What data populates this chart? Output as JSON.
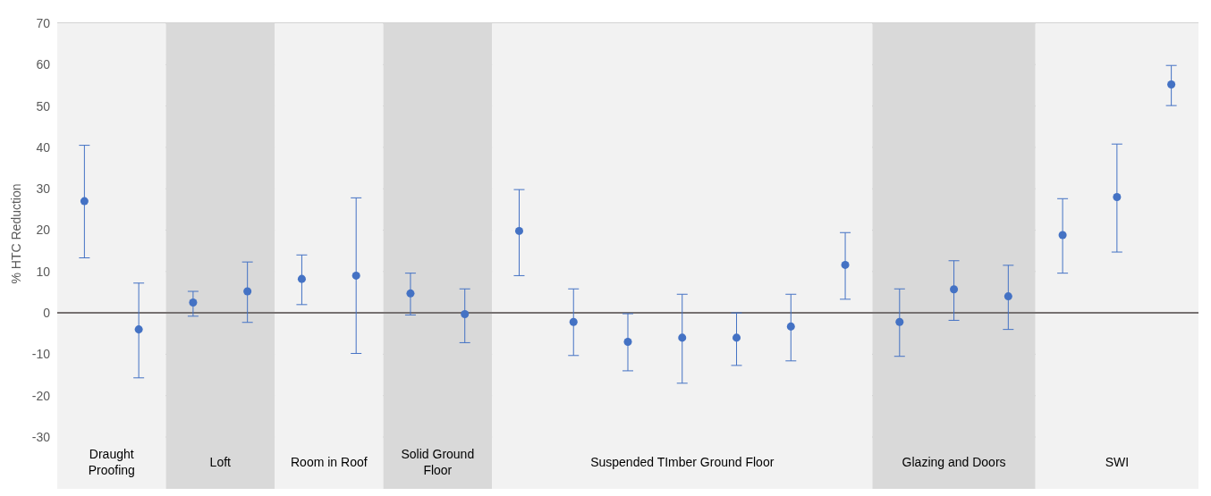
{
  "chart_data": {
    "type": "scatter",
    "ylabel": "% HTC Reduction",
    "categories": [
      null,
      null,
      null,
      null,
      null,
      null,
      null,
      null,
      null,
      null,
      null,
      null,
      null,
      null,
      null,
      null,
      null,
      null,
      null,
      null,
      null
    ],
    "ylim": [
      -30,
      70
    ],
    "yticks": [
      -30,
      -20,
      -10,
      0,
      10,
      20,
      30,
      40,
      50,
      60,
      70
    ],
    "tick_labels": "y",
    "grid": "y",
    "marker": "circle",
    "series": [
      {
        "color": "#4472c4",
        "values": [
          27,
          -4,
          2.5,
          5.2,
          8.2,
          9,
          4.7,
          -0.3,
          19.8,
          -2.2,
          -7,
          -6,
          -6,
          -3.3,
          11.6,
          -2.2,
          5.7,
          4,
          18.8,
          28,
          55.2
        ],
        "errors": [
          [
            13.3,
            40.5
          ],
          [
            -15.7,
            7.2
          ],
          [
            -0.8,
            5.2
          ],
          [
            -2.3,
            12.3
          ],
          [
            2,
            14
          ],
          [
            -9.8,
            27.8
          ],
          [
            -0.5,
            9.6
          ],
          [
            -7.2,
            5.8
          ],
          [
            9,
            29.8
          ],
          [
            -10.3,
            5.8
          ],
          [
            -14,
            -0.2
          ],
          [
            -17,
            4.5
          ],
          [
            -12.7,
            0
          ],
          [
            -11.6,
            4.5
          ],
          [
            3.3,
            19.4
          ],
          [
            -10.5,
            5.8
          ],
          [
            -1.8,
            12.6
          ],
          [
            -4,
            11.5
          ],
          [
            9.6,
            27.6
          ],
          [
            14.7,
            40.8
          ],
          [
            50.1,
            59.8
          ]
        ]
      }
    ],
    "annotations": [
      "Draught Proofing",
      "Loft",
      "Room in Roof",
      "Solid Ground Floor",
      "Suspended TImber Ground Floor",
      "Glazing and Doors",
      "SWI"
    ],
    "ref_lines": [
      {
        "axis": "y",
        "value": 0,
        "color": "#767171"
      }
    ]
  }
}
